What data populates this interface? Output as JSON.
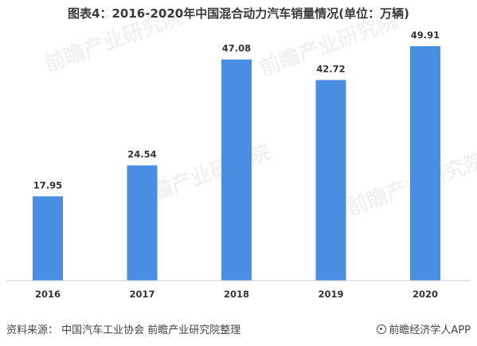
{
  "chart_data": {
    "type": "bar",
    "title": "图表4：2016-2020年中国混合动力汽车销量情况(单位：万辆)",
    "categories": [
      "2016",
      "2017",
      "2018",
      "2019",
      "2020"
    ],
    "values": [
      17.95,
      24.54,
      47.08,
      42.72,
      49.91
    ],
    "value_labels": [
      "17.95",
      "24.54",
      "47.08",
      "42.72",
      "49.91"
    ],
    "ylim": [
      0,
      55
    ],
    "grid": false,
    "bar_color": "#4a8ee3"
  },
  "watermark": "前瞻产业研究院",
  "footer": {
    "source": "资料来源：  中国汽车工业协会 前瞻产业研究院整理",
    "brand": "前瞻经济学人APP"
  }
}
